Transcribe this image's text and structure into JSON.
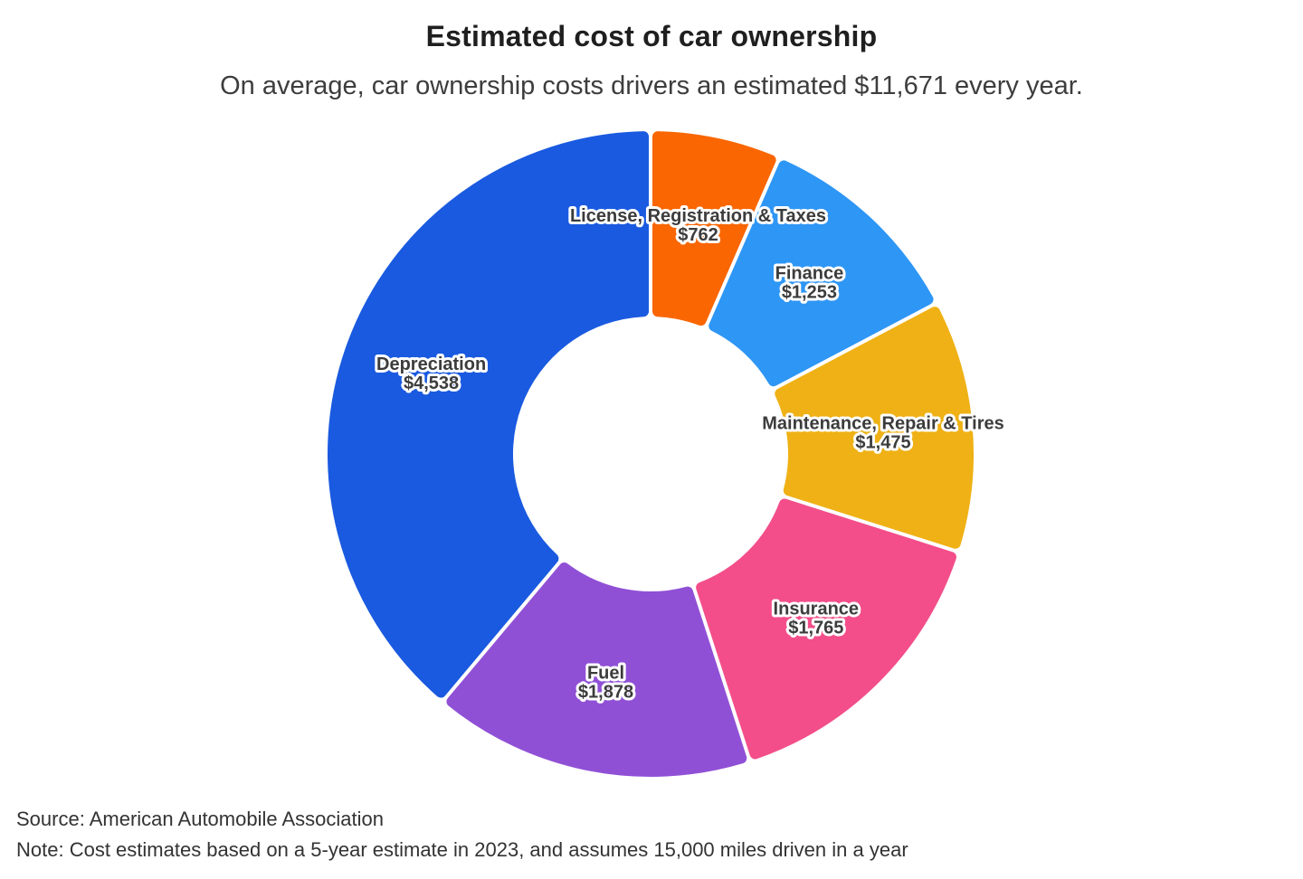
{
  "chart_data": {
    "type": "pie",
    "variant": "donut",
    "title": "Estimated cost of car ownership",
    "subtitle": "On average, car ownership costs drivers an estimated $11,671 every year.",
    "total": 11671,
    "total_label": "$11,671",
    "start_angle_deg": 0,
    "direction": "clockwise",
    "legend_position": "none",
    "labels_on_slices": true,
    "label_text_color": "#3c3c3c",
    "label_outline_color": "#ffffff",
    "segments": [
      {
        "label": "License, Registration & Taxes",
        "value": 762,
        "value_label": "$762",
        "color": "#F96602"
      },
      {
        "label": "Finance",
        "value": 1253,
        "value_label": "$1,253",
        "color": "#2E96F5"
      },
      {
        "label": "Maintenance, Repair & Tires",
        "value": 1475,
        "value_label": "$1,475",
        "color": "#EFB115"
      },
      {
        "label": "Insurance",
        "value": 1765,
        "value_label": "$1,765",
        "color": "#F34E8A"
      },
      {
        "label": "Fuel",
        "value": 1878,
        "value_label": "$1,878",
        "color": "#9050D6"
      },
      {
        "label": "Depreciation",
        "value": 4538,
        "value_label": "$4,538",
        "color": "#1A5AE0"
      }
    ]
  },
  "footer": {
    "source": "Source: American Automobile Association",
    "note": "Note: Cost estimates based on a 5-year estimate in 2023, and assumes 15,000 miles driven in a year"
  }
}
